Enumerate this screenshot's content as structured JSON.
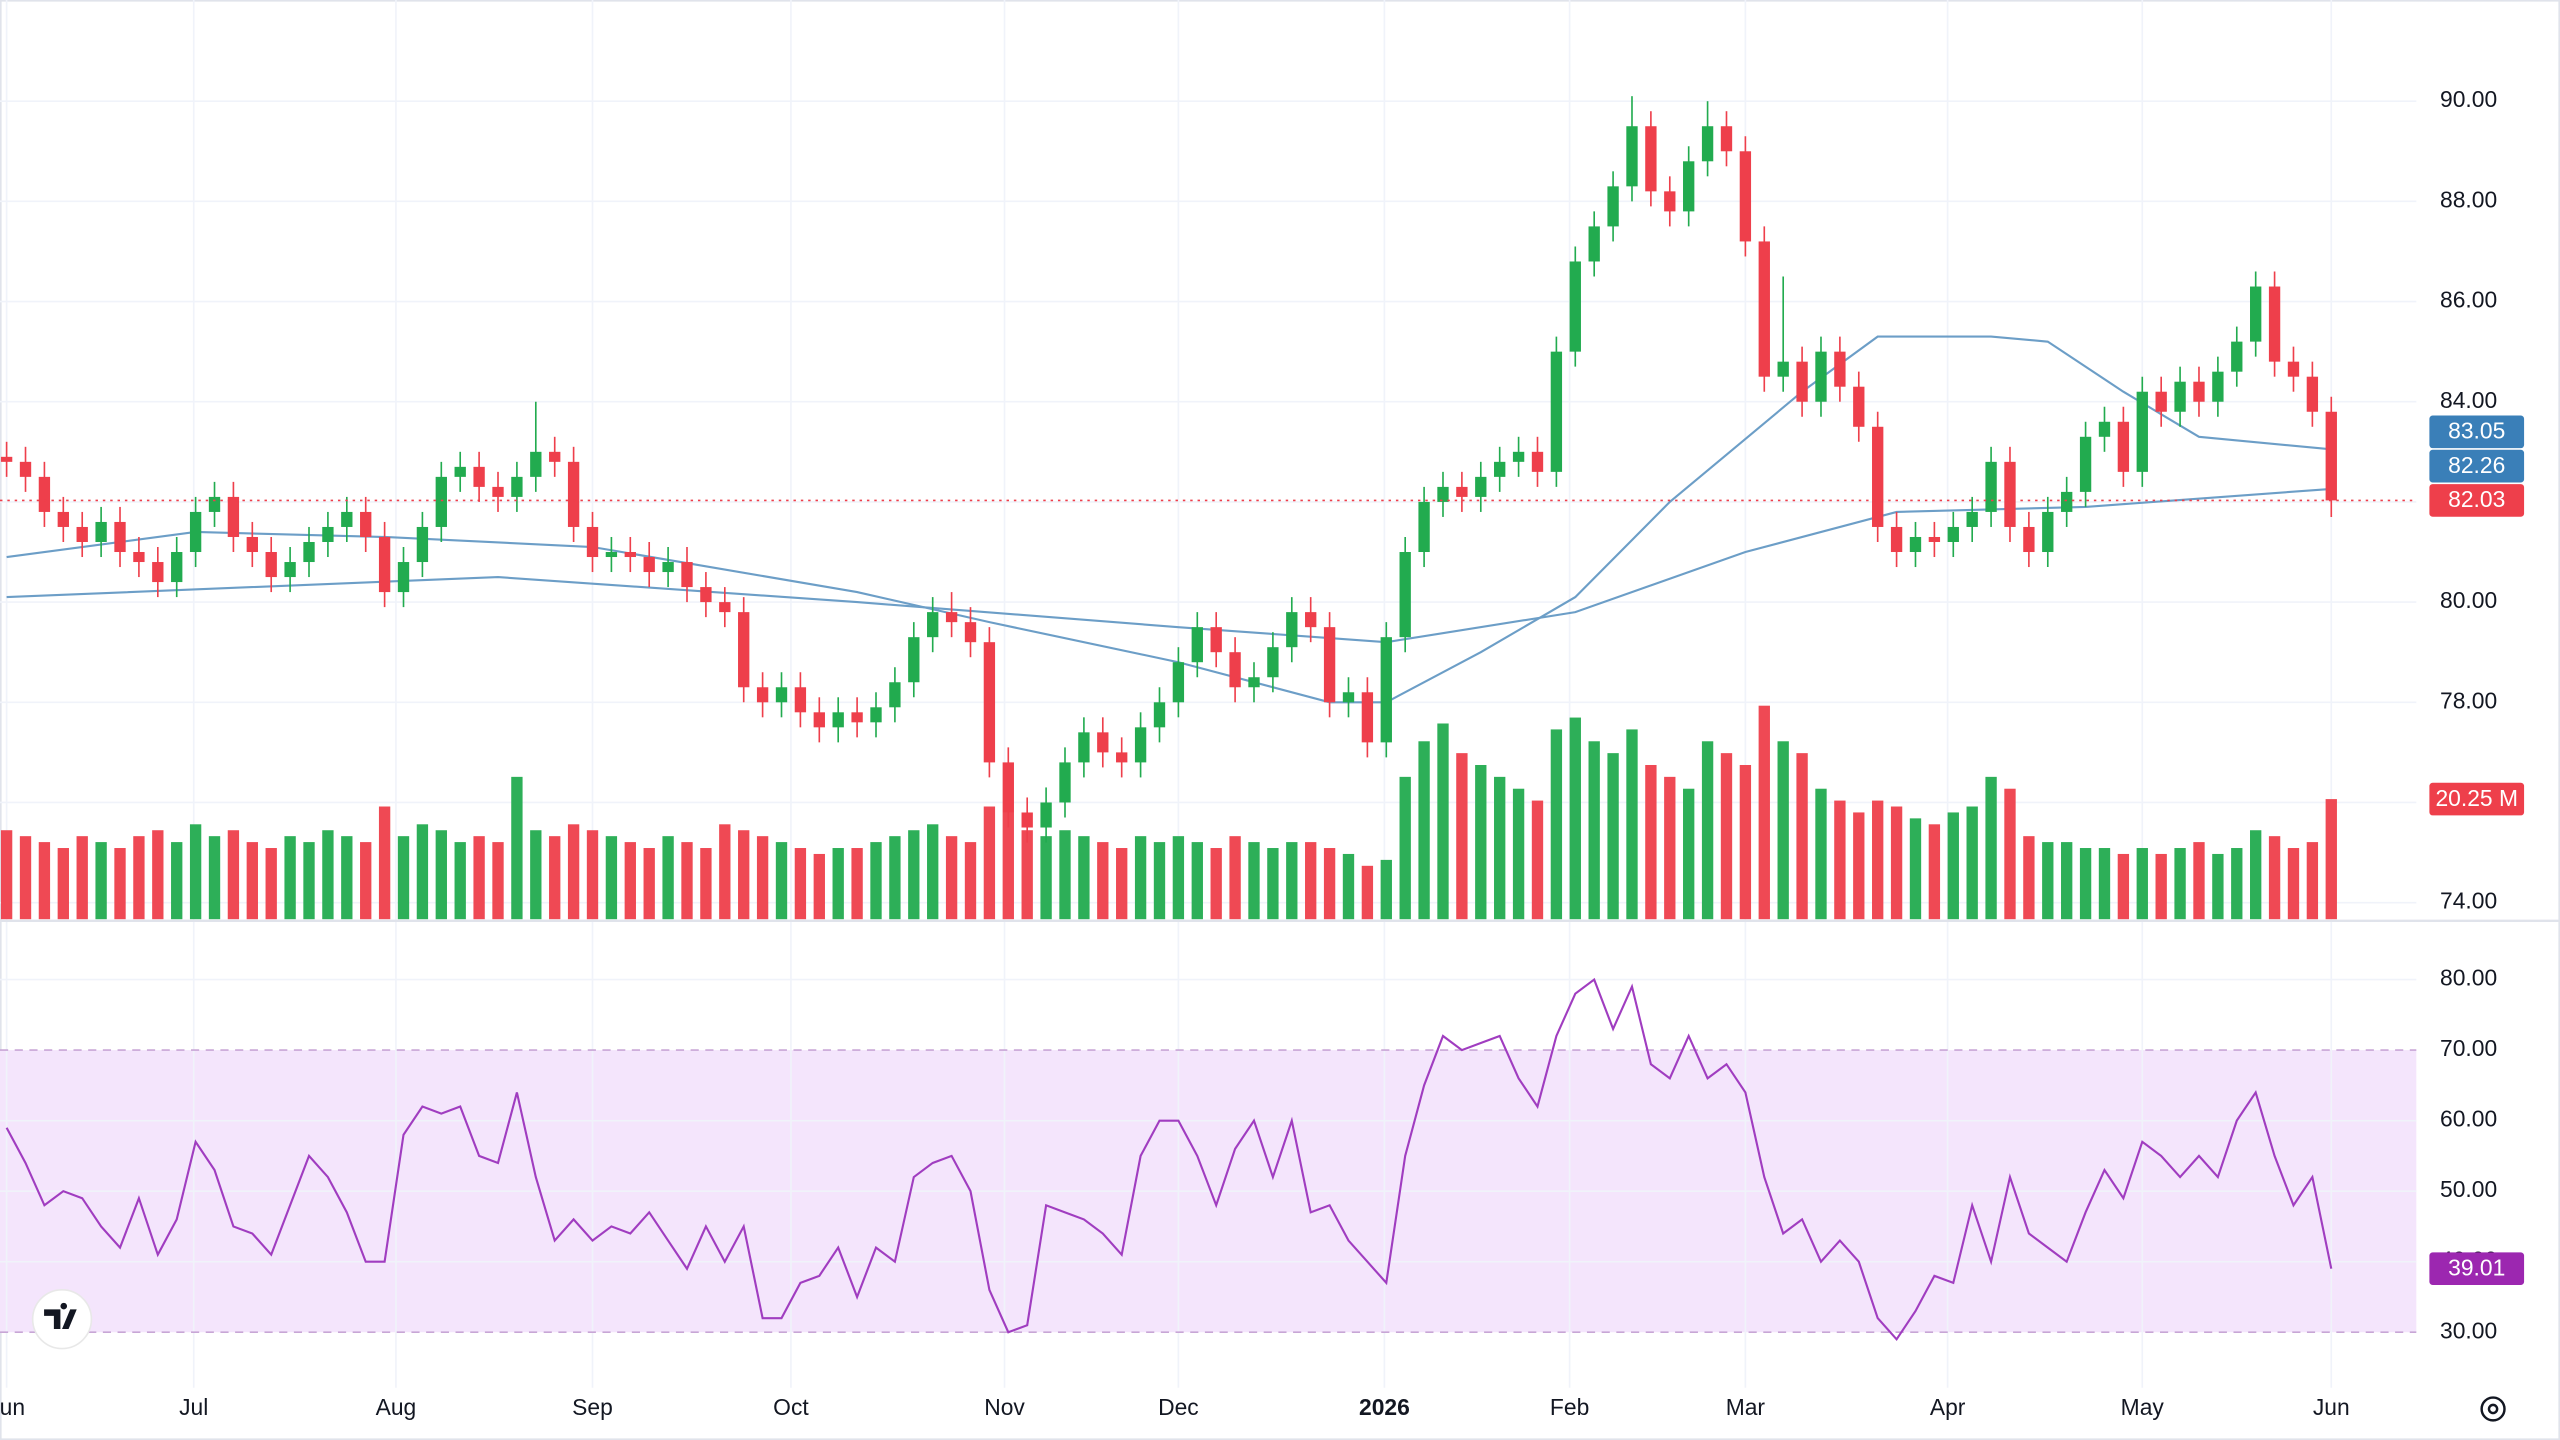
{
  "chart_data": {
    "type": "candlestick",
    "colors": {
      "up": "#22ab4f",
      "down": "#ee3f4b"
    },
    "xlim": [
      -0.35,
      127.5
    ],
    "xticks": [
      {
        "value": 0,
        "label": "Jun"
      },
      {
        "value": 9.9,
        "label": "Jul"
      },
      {
        "value": 20.6,
        "label": "Aug"
      },
      {
        "value": 31,
        "label": "Sep"
      },
      {
        "value": 41.5,
        "label": "Oct"
      },
      {
        "value": 52.8,
        "label": "Nov"
      },
      {
        "value": 62,
        "label": "Dec"
      },
      {
        "value": 72.9,
        "label": "2026"
      },
      {
        "value": 82.7,
        "label": "Feb"
      },
      {
        "value": 92,
        "label": "Mar"
      },
      {
        "value": 102.7,
        "label": "Apr"
      },
      {
        "value": 113,
        "label": "May"
      },
      {
        "value": 123,
        "label": "Jun"
      }
    ],
    "ylim": [
      73.67,
      92.02
    ],
    "yticks": [
      {
        "value": 74,
        "label": "74.00"
      },
      {
        "value": 76,
        "label": "76.00"
      },
      {
        "value": 78,
        "label": "78.00"
      },
      {
        "value": 80,
        "label": "80.00"
      },
      {
        "value": 82,
        "label": "82.00"
      },
      {
        "value": 84,
        "label": "84.00"
      },
      {
        "value": 86,
        "label": "86.00"
      },
      {
        "value": 88,
        "label": "88.00"
      },
      {
        "value": 90,
        "label": "90.00"
      }
    ],
    "grid": true,
    "last_price_line": true,
    "open": [
      82.9,
      82.8,
      82.5,
      81.8,
      81.5,
      81.2,
      81.6,
      81.0,
      80.8,
      80.4,
      81.0,
      81.8,
      82.1,
      81.3,
      81.0,
      80.5,
      80.8,
      81.2,
      81.5,
      81.8,
      81.3,
      80.2,
      80.8,
      81.5,
      82.5,
      82.7,
      82.3,
      82.1,
      82.5,
      83.0,
      82.8,
      81.5,
      80.9,
      81.0,
      80.9,
      80.6,
      80.8,
      80.3,
      80.0,
      79.8,
      78.3,
      78.0,
      78.3,
      77.8,
      77.5,
      77.8,
      77.6,
      77.9,
      78.4,
      79.3,
      79.8,
      79.6,
      79.2,
      76.8,
      75.8,
      75.5,
      76.0,
      76.8,
      77.4,
      77.0,
      76.8,
      77.5,
      78.0,
      78.8,
      79.5,
      79.0,
      78.3,
      78.5,
      79.1,
      79.8,
      79.5,
      78.0,
      78.2,
      77.2,
      79.3,
      81.0,
      82.0,
      82.3,
      82.1,
      82.5,
      82.8,
      83.0,
      82.6,
      85.0,
      86.8,
      87.5,
      88.3,
      89.5,
      88.2,
      87.8,
      88.8,
      89.5,
      89.0,
      87.2,
      84.5,
      84.8,
      84.0,
      85.0,
      84.3,
      83.5,
      81.5,
      81.0,
      81.3,
      81.2,
      81.5,
      81.8,
      82.8,
      81.5,
      81.0,
      81.8,
      82.2,
      83.3,
      83.6,
      82.6,
      84.2,
      83.8,
      84.4,
      84.0,
      84.6,
      85.2,
      86.3,
      84.8,
      84.5,
      83.8
    ],
    "high": [
      83.2,
      83.1,
      82.8,
      82.1,
      81.8,
      81.9,
      81.9,
      81.3,
      81.1,
      81.3,
      82.1,
      82.4,
      82.4,
      81.6,
      81.3,
      81.1,
      81.5,
      81.8,
      82.1,
      82.1,
      81.6,
      81.1,
      81.8,
      82.8,
      83.0,
      83.0,
      82.6,
      82.8,
      84.0,
      83.3,
      83.1,
      81.8,
      81.3,
      81.3,
      81.2,
      81.1,
      81.1,
      80.6,
      80.3,
      80.1,
      78.6,
      78.6,
      78.6,
      78.1,
      78.1,
      78.1,
      78.2,
      78.7,
      79.6,
      80.1,
      80.2,
      79.9,
      79.5,
      77.1,
      76.1,
      76.3,
      77.1,
      77.7,
      77.7,
      77.3,
      77.8,
      78.3,
      79.1,
      79.8,
      79.8,
      79.3,
      78.8,
      79.4,
      80.1,
      80.1,
      79.8,
      78.5,
      78.5,
      79.6,
      81.3,
      82.3,
      82.6,
      82.6,
      82.8,
      83.1,
      83.3,
      83.3,
      85.3,
      87.1,
      87.8,
      88.6,
      90.1,
      89.8,
      88.5,
      89.1,
      90.0,
      89.8,
      89.3,
      87.5,
      86.5,
      85.1,
      85.3,
      85.3,
      84.6,
      83.8,
      81.8,
      81.6,
      81.6,
      81.8,
      82.1,
      83.1,
      83.1,
      81.8,
      82.1,
      82.5,
      83.6,
      83.9,
      83.9,
      84.5,
      84.5,
      84.7,
      84.7,
      84.9,
      85.5,
      86.6,
      86.6,
      85.1,
      84.8,
      84.1
    ],
    "low": [
      82.5,
      82.2,
      81.5,
      81.2,
      80.9,
      80.9,
      80.7,
      80.5,
      80.1,
      80.1,
      80.7,
      81.5,
      81.0,
      80.7,
      80.2,
      80.2,
      80.5,
      80.9,
      81.2,
      81.0,
      79.9,
      79.9,
      80.5,
      81.2,
      82.2,
      82.0,
      81.8,
      81.8,
      82.2,
      82.5,
      81.2,
      80.6,
      80.6,
      80.6,
      80.3,
      80.3,
      80.0,
      79.7,
      79.5,
      78.0,
      77.7,
      77.7,
      77.5,
      77.2,
      77.2,
      77.3,
      77.3,
      77.6,
      78.1,
      79.0,
      79.3,
      78.9,
      76.5,
      75.5,
      75.2,
      75.2,
      75.7,
      76.5,
      76.7,
      76.5,
      76.5,
      77.2,
      77.7,
      78.5,
      78.7,
      78.0,
      78.0,
      78.2,
      78.8,
      79.2,
      77.7,
      77.7,
      76.9,
      76.9,
      79.0,
      80.7,
      81.7,
      81.8,
      81.8,
      82.2,
      82.5,
      82.3,
      82.3,
      84.7,
      86.5,
      87.2,
      88.0,
      87.9,
      87.5,
      87.5,
      88.5,
      88.7,
      86.9,
      84.2,
      84.2,
      83.7,
      83.7,
      84.0,
      83.2,
      81.2,
      80.7,
      80.7,
      80.9,
      80.9,
      81.2,
      81.5,
      81.2,
      80.7,
      80.7,
      81.5,
      81.9,
      83.0,
      82.3,
      82.3,
      83.5,
      83.5,
      83.7,
      83.7,
      84.3,
      84.9,
      84.5,
      84.2,
      83.5,
      81.7
    ],
    "close": [
      82.8,
      82.5,
      81.8,
      81.5,
      81.2,
      81.6,
      81.0,
      80.8,
      80.4,
      81.0,
      81.8,
      82.1,
      81.3,
      81.0,
      80.5,
      80.8,
      81.2,
      81.5,
      81.8,
      81.3,
      80.2,
      80.8,
      81.5,
      82.5,
      82.7,
      82.3,
      82.1,
      82.5,
      83.0,
      82.8,
      81.5,
      80.9,
      81.0,
      80.9,
      80.6,
      80.8,
      80.3,
      80.0,
      79.8,
      78.3,
      78.0,
      78.3,
      77.8,
      77.5,
      77.8,
      77.6,
      77.9,
      78.4,
      79.3,
      79.8,
      79.6,
      79.2,
      76.8,
      75.8,
      75.5,
      76.0,
      76.8,
      77.4,
      77.0,
      76.8,
      77.5,
      78.0,
      78.8,
      79.5,
      79.0,
      78.3,
      78.5,
      79.1,
      79.8,
      79.5,
      78.0,
      78.2,
      77.2,
      79.3,
      81.0,
      82.0,
      82.3,
      82.1,
      82.5,
      82.8,
      83.0,
      82.6,
      85.0,
      86.8,
      87.5,
      88.3,
      89.5,
      88.2,
      87.8,
      88.8,
      89.5,
      89.0,
      87.2,
      84.5,
      84.8,
      84.0,
      85.0,
      84.3,
      83.5,
      81.5,
      81.0,
      81.3,
      81.2,
      81.5,
      81.8,
      82.8,
      81.5,
      81.0,
      81.8,
      82.2,
      83.3,
      83.6,
      82.6,
      84.2,
      83.8,
      84.4,
      84.0,
      84.6,
      85.2,
      86.3,
      84.8,
      84.5,
      83.8,
      82.03
    ],
    "moving_averages": [
      {
        "color": "#6c9ec7",
        "x": [
          0,
          10,
          20,
          31,
          45,
          52,
          62,
          70,
          73,
          78,
          83,
          88,
          95,
          99,
          105,
          108,
          112,
          116,
          123
        ],
        "values": [
          80.9,
          81.4,
          81.3,
          81.1,
          80.2,
          79.6,
          78.8,
          78.0,
          78.0,
          79.0,
          80.1,
          82.0,
          84.2,
          85.3,
          85.3,
          85.2,
          84.2,
          83.3,
          83.05
        ]
      },
      {
        "color": "#6c9ec7",
        "x": [
          0,
          26,
          45,
          62,
          73,
          83,
          92,
          100,
          110,
          123
        ],
        "values": [
          80.1,
          80.5,
          80.0,
          79.5,
          79.2,
          79.8,
          81.0,
          81.8,
          81.9,
          82.26
        ]
      }
    ],
    "volume": {
      "ylim": [
        0,
        155
      ],
      "last_label": "20.25 M",
      "values": [
        15,
        14,
        13,
        12,
        14,
        13,
        12,
        14,
        15,
        13,
        16,
        14,
        15,
        13,
        12,
        14,
        13,
        15,
        14,
        13,
        19,
        14,
        16,
        15,
        13,
        14,
        13,
        24,
        15,
        14,
        16,
        15,
        14,
        13,
        12,
        14,
        13,
        12,
        16,
        15,
        14,
        13,
        12,
        11,
        12,
        12,
        13,
        14,
        15,
        16,
        14,
        13,
        19,
        18,
        15,
        14,
        15,
        14,
        13,
        12,
        14,
        13,
        14,
        13,
        12,
        14,
        13,
        12,
        13,
        13,
        12,
        11,
        9,
        10,
        24,
        30,
        33,
        28,
        26,
        24,
        22,
        20,
        32,
        34,
        30,
        28,
        32,
        26,
        24,
        22,
        30,
        28,
        26,
        36,
        30,
        28,
        22,
        20,
        18,
        20,
        19,
        17,
        16,
        18,
        19,
        24,
        22,
        14,
        13,
        13,
        12,
        12,
        11,
        12,
        11,
        12,
        13,
        11,
        12,
        15,
        14,
        12,
        13,
        20.25
      ]
    },
    "rsi": {
      "color": "#a03dc0",
      "band": [
        30,
        70
      ],
      "band_color": "#f4e5fc",
      "ylim": [
        22.13,
        88.56
      ],
      "yticks": [
        {
          "value": 30,
          "label": "30.00"
        },
        {
          "value": 40,
          "label": "40.00"
        },
        {
          "value": 50,
          "label": "50.00"
        },
        {
          "value": 60,
          "label": "60.00"
        },
        {
          "value": 70,
          "label": "70.00"
        },
        {
          "value": 80,
          "label": "80.00"
        }
      ],
      "values": [
        59,
        54,
        48,
        50,
        49,
        45,
        42,
        49,
        41,
        46,
        57,
        53,
        45,
        44,
        41,
        48,
        55,
        52,
        47,
        40,
        40,
        58,
        62,
        61,
        62,
        55,
        54,
        64,
        52,
        43,
        46,
        43,
        45,
        44,
        47,
        43,
        39,
        45,
        40,
        45,
        32,
        32,
        37,
        38,
        42,
        35,
        42,
        40,
        52,
        54,
        55,
        50,
        36,
        30,
        31,
        48,
        47,
        46,
        44,
        41,
        55,
        60,
        60,
        55,
        48,
        56,
        60,
        52,
        60,
        47,
        48,
        43,
        40,
        37,
        55,
        65,
        72,
        70,
        71,
        72,
        66,
        62,
        72,
        78,
        80,
        73,
        79,
        68,
        66,
        72,
        66,
        68,
        64,
        52,
        44,
        46,
        40,
        43,
        40,
        32,
        29,
        33,
        38,
        37,
        48,
        40,
        52,
        44,
        42,
        40,
        47,
        53,
        49,
        57,
        55,
        52,
        55,
        52,
        60,
        64,
        55,
        48,
        52,
        39.01
      ]
    }
  }
}
